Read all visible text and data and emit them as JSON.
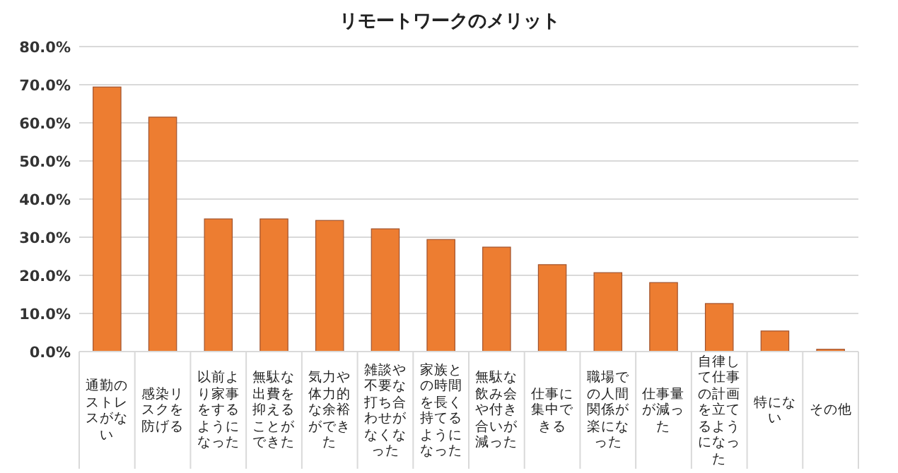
{
  "chart_data": {
    "type": "bar",
    "title": "リモートワークのメリット",
    "categories": [
      "通勤のストレスがない",
      "感染リスクを防げる",
      "以前より家事をするようになった",
      "無駄な出費を抑えることができた",
      "気力や体力的な余裕ができた",
      "雑談や不要な打ち合わせがなくなった",
      "家族との時間を長く持てるようになった",
      "無駄な飲み会や付き合いが減った",
      "仕事に集中できる",
      "職場での人間関係が楽になった",
      "仕事量が減った",
      "自律して仕事の計画を立てるようになった",
      "特にない",
      "その他"
    ],
    "values": [
      69.4,
      61.5,
      34.8,
      34.8,
      34.4,
      32.2,
      29.4,
      27.4,
      22.8,
      20.7,
      18.1,
      12.6,
      5.4,
      0.6
    ],
    "color": "#ed7d31",
    "ylim": [
      0,
      80
    ],
    "yticks": [
      {
        "value": 0,
        "label": "0.0%"
      },
      {
        "value": 10,
        "label": "10.0%"
      },
      {
        "value": 20,
        "label": "20.0%"
      },
      {
        "value": 30,
        "label": "30.0%"
      },
      {
        "value": 40,
        "label": "40.0%"
      },
      {
        "value": 50,
        "label": "50.0%"
      },
      {
        "value": 60,
        "label": "60.0%"
      },
      {
        "value": 70,
        "label": "70.0%"
      },
      {
        "value": 80,
        "label": "80.0%"
      }
    ],
    "grid": "y"
  }
}
